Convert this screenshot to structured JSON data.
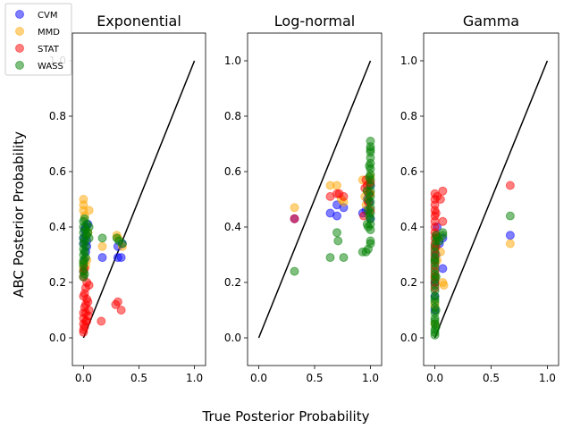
{
  "figure": {
    "xlabel": "True Posterior Probability",
    "ylabel": "ABC Posterior Probability"
  },
  "legend": {
    "placement": "upper-left",
    "entries": [
      {
        "name": "CVM",
        "color": "#0000ff"
      },
      {
        "name": "MMD",
        "color": "#ffa500"
      },
      {
        "name": "STAT",
        "color": "#ff0000"
      },
      {
        "name": "WASS",
        "color": "#008000"
      }
    ]
  },
  "chart_data": [
    {
      "type": "scatter",
      "title": "Exponential",
      "xlim": [
        -0.1,
        1.1
      ],
      "ylim": [
        -0.1,
        1.1
      ],
      "xticks": [
        "0.0",
        "0.5",
        "1.0"
      ],
      "yticks": [
        "0.0",
        "0.2",
        "0.4",
        "0.6",
        "0.8",
        "1.0"
      ],
      "reference_line": {
        "x": [
          0,
          1
        ],
        "y": [
          0,
          1
        ]
      },
      "series": [
        {
          "name": "CVM",
          "color": "#0000ff",
          "points": [
            [
              0.0,
              0.34
            ],
            [
              0.02,
              0.37
            ],
            [
              0.03,
              0.33
            ],
            [
              0.04,
              0.41
            ],
            [
              0.01,
              0.39
            ],
            [
              0.02,
              0.31
            ],
            [
              0.17,
              0.29
            ],
            [
              0.31,
              0.29
            ],
            [
              0.34,
              0.29
            ],
            [
              0.31,
              0.33
            ],
            [
              0.35,
              0.34
            ],
            [
              0.0,
              0.36
            ],
            [
              0.01,
              0.28
            ],
            [
              0.03,
              0.35
            ],
            [
              0.02,
              0.4
            ]
          ]
        },
        {
          "name": "MMD",
          "color": "#ffa500",
          "points": [
            [
              0.0,
              0.5
            ],
            [
              0.0,
              0.48
            ],
            [
              0.0,
              0.46
            ],
            [
              0.05,
              0.46
            ],
            [
              0.17,
              0.33
            ],
            [
              0.3,
              0.37
            ],
            [
              0.31,
              0.36
            ],
            [
              0.35,
              0.33
            ],
            [
              0.0,
              0.27
            ],
            [
              0.01,
              0.44
            ],
            [
              0.03,
              0.28
            ],
            [
              0.0,
              0.25
            ],
            [
              0.02,
              0.26
            ],
            [
              0.04,
              0.38
            ]
          ]
        },
        {
          "name": "STAT",
          "color": "#ff0000",
          "points": [
            [
              0.0,
              0.03
            ],
            [
              0.0,
              0.05
            ],
            [
              0.0,
              0.07
            ],
            [
              0.0,
              0.09
            ],
            [
              0.01,
              0.11
            ],
            [
              0.02,
              0.12
            ],
            [
              0.03,
              0.14
            ],
            [
              0.01,
              0.16
            ],
            [
              0.02,
              0.18
            ],
            [
              0.03,
              0.2
            ],
            [
              0.0,
              0.22
            ],
            [
              0.01,
              0.04
            ],
            [
              0.03,
              0.06
            ],
            [
              0.04,
              0.08
            ],
            [
              0.05,
              0.1
            ],
            [
              0.04,
              0.13
            ],
            [
              0.05,
              0.19
            ],
            [
              0.0,
              0.24
            ],
            [
              0.0,
              0.02
            ],
            [
              0.16,
              0.06
            ],
            [
              0.29,
              0.12
            ],
            [
              0.31,
              0.13
            ],
            [
              0.34,
              0.1
            ],
            [
              0.0,
              0.15
            ],
            [
              0.02,
              0.06
            ],
            [
              0.01,
              0.25
            ],
            [
              0.02,
              0.09
            ]
          ]
        },
        {
          "name": "WASS",
          "color": "#008000",
          "points": [
            [
              0.0,
              0.24
            ],
            [
              0.0,
              0.26
            ],
            [
              0.0,
              0.28
            ],
            [
              0.0,
              0.3
            ],
            [
              0.0,
              0.32
            ],
            [
              0.0,
              0.34
            ],
            [
              0.0,
              0.36
            ],
            [
              0.0,
              0.38
            ],
            [
              0.0,
              0.4
            ],
            [
              0.0,
              0.42
            ],
            [
              0.01,
              0.43
            ],
            [
              0.01,
              0.35
            ],
            [
              0.01,
              0.31
            ],
            [
              0.02,
              0.29
            ],
            [
              0.02,
              0.39
            ],
            [
              0.03,
              0.41
            ],
            [
              0.03,
              0.37
            ],
            [
              0.04,
              0.38
            ],
            [
              0.05,
              0.36
            ],
            [
              0.05,
              0.4
            ],
            [
              0.17,
              0.36
            ],
            [
              0.3,
              0.36
            ],
            [
              0.32,
              0.35
            ],
            [
              0.35,
              0.34
            ],
            [
              0.0,
              0.27
            ],
            [
              0.01,
              0.23
            ],
            [
              0.02,
              0.33
            ],
            [
              0.0,
              0.22
            ]
          ]
        }
      ]
    },
    {
      "type": "scatter",
      "title": "Log-normal",
      "xlim": [
        -0.1,
        1.1
      ],
      "ylim": [
        -0.1,
        1.1
      ],
      "xticks": [
        "0.0",
        "0.5",
        "1.0"
      ],
      "yticks": [
        "0.0",
        "0.2",
        "0.4",
        "0.6",
        "0.8",
        "1.0"
      ],
      "reference_line": {
        "x": [
          0,
          1
        ],
        "y": [
          0,
          1
        ]
      },
      "series": [
        {
          "name": "CVM",
          "color": "#0000ff",
          "points": [
            [
              0.32,
              0.43
            ],
            [
              0.64,
              0.45
            ],
            [
              0.7,
              0.44
            ],
            [
              0.7,
              0.48
            ],
            [
              0.76,
              0.47
            ],
            [
              0.93,
              0.45
            ],
            [
              0.96,
              0.46
            ],
            [
              0.98,
              0.52
            ],
            [
              0.99,
              0.49
            ],
            [
              1.0,
              0.55
            ],
            [
              1.0,
              0.43
            ],
            [
              0.97,
              0.5
            ]
          ]
        },
        {
          "name": "MMD",
          "color": "#ffa500",
          "points": [
            [
              0.32,
              0.47
            ],
            [
              0.64,
              0.55
            ],
            [
              0.7,
              0.55
            ],
            [
              0.74,
              0.5
            ],
            [
              0.76,
              0.49
            ],
            [
              0.93,
              0.57
            ],
            [
              0.95,
              0.51
            ],
            [
              0.97,
              0.53
            ],
            [
              1.0,
              0.58
            ],
            [
              0.99,
              0.56
            ],
            [
              0.96,
              0.48
            ],
            [
              1.0,
              0.52
            ]
          ]
        },
        {
          "name": "STAT",
          "color": "#ff0000",
          "points": [
            [
              0.32,
              0.43
            ],
            [
              0.64,
              0.51
            ],
            [
              0.7,
              0.52
            ],
            [
              0.72,
              0.52
            ],
            [
              0.76,
              0.51
            ],
            [
              0.94,
              0.44
            ],
            [
              0.96,
              0.57
            ],
            [
              0.97,
              0.55
            ],
            [
              0.99,
              0.52
            ],
            [
              1.0,
              0.56
            ],
            [
              0.98,
              0.49
            ],
            [
              1.0,
              0.46
            ],
            [
              0.95,
              0.54
            ]
          ]
        },
        {
          "name": "WASS",
          "color": "#008000",
          "points": [
            [
              0.32,
              0.24
            ],
            [
              0.64,
              0.29
            ],
            [
              0.7,
              0.38
            ],
            [
              0.71,
              0.35
            ],
            [
              0.76,
              0.29
            ],
            [
              0.93,
              0.31
            ],
            [
              0.96,
              0.31
            ],
            [
              0.98,
              0.32
            ],
            [
              1.0,
              0.35
            ],
            [
              1.0,
              0.34
            ],
            [
              0.97,
              0.41
            ],
            [
              1.0,
              0.39
            ],
            [
              1.0,
              0.41
            ],
            [
              1.0,
              0.43
            ],
            [
              1.0,
              0.45
            ],
            [
              1.0,
              0.47
            ],
            [
              1.0,
              0.49
            ],
            [
              1.0,
              0.51
            ],
            [
              1.0,
              0.53
            ],
            [
              1.0,
              0.55
            ],
            [
              1.0,
              0.57
            ],
            [
              1.0,
              0.59
            ],
            [
              1.0,
              0.61
            ],
            [
              1.0,
              0.63
            ],
            [
              1.0,
              0.65
            ],
            [
              1.0,
              0.67
            ],
            [
              1.0,
              0.69
            ],
            [
              1.0,
              0.71
            ],
            [
              0.99,
              0.44
            ],
            [
              0.98,
              0.5
            ],
            [
              0.99,
              0.58
            ],
            [
              0.98,
              0.46
            ],
            [
              0.97,
              0.53
            ],
            [
              1.0,
              0.68
            ],
            [
              0.99,
              0.62
            ],
            [
              0.98,
              0.4
            ]
          ]
        }
      ]
    },
    {
      "type": "scatter",
      "title": "Gamma",
      "xlim": [
        -0.1,
        1.1
      ],
      "ylim": [
        -0.1,
        1.1
      ],
      "xticks": [
        "0.0",
        "0.5",
        "1.0"
      ],
      "yticks": [
        "0.0",
        "0.2",
        "0.4",
        "0.6",
        "0.8",
        "1.0"
      ],
      "reference_line": {
        "x": [
          0,
          1
        ],
        "y": [
          0,
          1
        ]
      },
      "series": [
        {
          "name": "CVM",
          "color": "#0000ff",
          "points": [
            [
              0.0,
              0.1
            ],
            [
              0.0,
              0.15
            ],
            [
              0.01,
              0.3
            ],
            [
              0.04,
              0.34
            ],
            [
              0.07,
              0.36
            ],
            [
              0.07,
              0.25
            ],
            [
              0.67,
              0.37
            ],
            [
              0.02,
              0.4
            ],
            [
              0.0,
              0.2
            ]
          ]
        },
        {
          "name": "MMD",
          "color": "#ffa500",
          "points": [
            [
              0.0,
              0.05
            ],
            [
              0.0,
              0.12
            ],
            [
              0.02,
              0.28
            ],
            [
              0.05,
              0.31
            ],
            [
              0.07,
              0.2
            ],
            [
              0.08,
              0.19
            ],
            [
              0.67,
              0.34
            ],
            [
              0.03,
              0.36
            ],
            [
              0.0,
              0.22
            ]
          ]
        },
        {
          "name": "STAT",
          "color": "#ff0000",
          "points": [
            [
              0.0,
              0.52
            ],
            [
              0.0,
              0.5
            ],
            [
              0.0,
              0.48
            ],
            [
              0.0,
              0.46
            ],
            [
              0.0,
              0.44
            ],
            [
              0.0,
              0.42
            ],
            [
              0.0,
              0.4
            ],
            [
              0.0,
              0.38
            ],
            [
              0.0,
              0.36
            ],
            [
              0.0,
              0.34
            ],
            [
              0.0,
              0.32
            ],
            [
              0.0,
              0.3
            ],
            [
              0.0,
              0.28
            ],
            [
              0.0,
              0.26
            ],
            [
              0.0,
              0.24
            ],
            [
              0.0,
              0.22
            ],
            [
              0.01,
              0.45
            ],
            [
              0.01,
              0.37
            ],
            [
              0.02,
              0.51
            ],
            [
              0.05,
              0.5
            ],
            [
              0.07,
              0.53
            ],
            [
              0.07,
              0.42
            ],
            [
              0.67,
              0.55
            ],
            [
              0.01,
              0.33
            ],
            [
              0.0,
              0.2
            ],
            [
              0.0,
              0.18
            ]
          ]
        },
        {
          "name": "WASS",
          "color": "#008000",
          "points": [
            [
              0.0,
              0.01
            ],
            [
              0.0,
              0.02
            ],
            [
              0.0,
              0.03
            ],
            [
              0.0,
              0.05
            ],
            [
              0.0,
              0.07
            ],
            [
              0.0,
              0.09
            ],
            [
              0.0,
              0.11
            ],
            [
              0.0,
              0.13
            ],
            [
              0.0,
              0.15
            ],
            [
              0.0,
              0.17
            ],
            [
              0.0,
              0.19
            ],
            [
              0.0,
              0.21
            ],
            [
              0.0,
              0.23
            ],
            [
              0.0,
              0.25
            ],
            [
              0.0,
              0.27
            ],
            [
              0.0,
              0.29
            ],
            [
              0.0,
              0.31
            ],
            [
              0.0,
              0.33
            ],
            [
              0.01,
              0.35
            ],
            [
              0.01,
              0.37
            ],
            [
              0.02,
              0.36
            ],
            [
              0.04,
              0.35
            ],
            [
              0.07,
              0.38
            ],
            [
              0.07,
              0.37
            ],
            [
              0.67,
              0.44
            ],
            [
              0.01,
              0.04
            ],
            [
              0.0,
              0.06
            ],
            [
              0.01,
              0.1
            ],
            [
              0.0,
              0.14
            ],
            [
              0.01,
              0.22
            ],
            [
              0.0,
              0.28
            ]
          ]
        }
      ]
    }
  ]
}
